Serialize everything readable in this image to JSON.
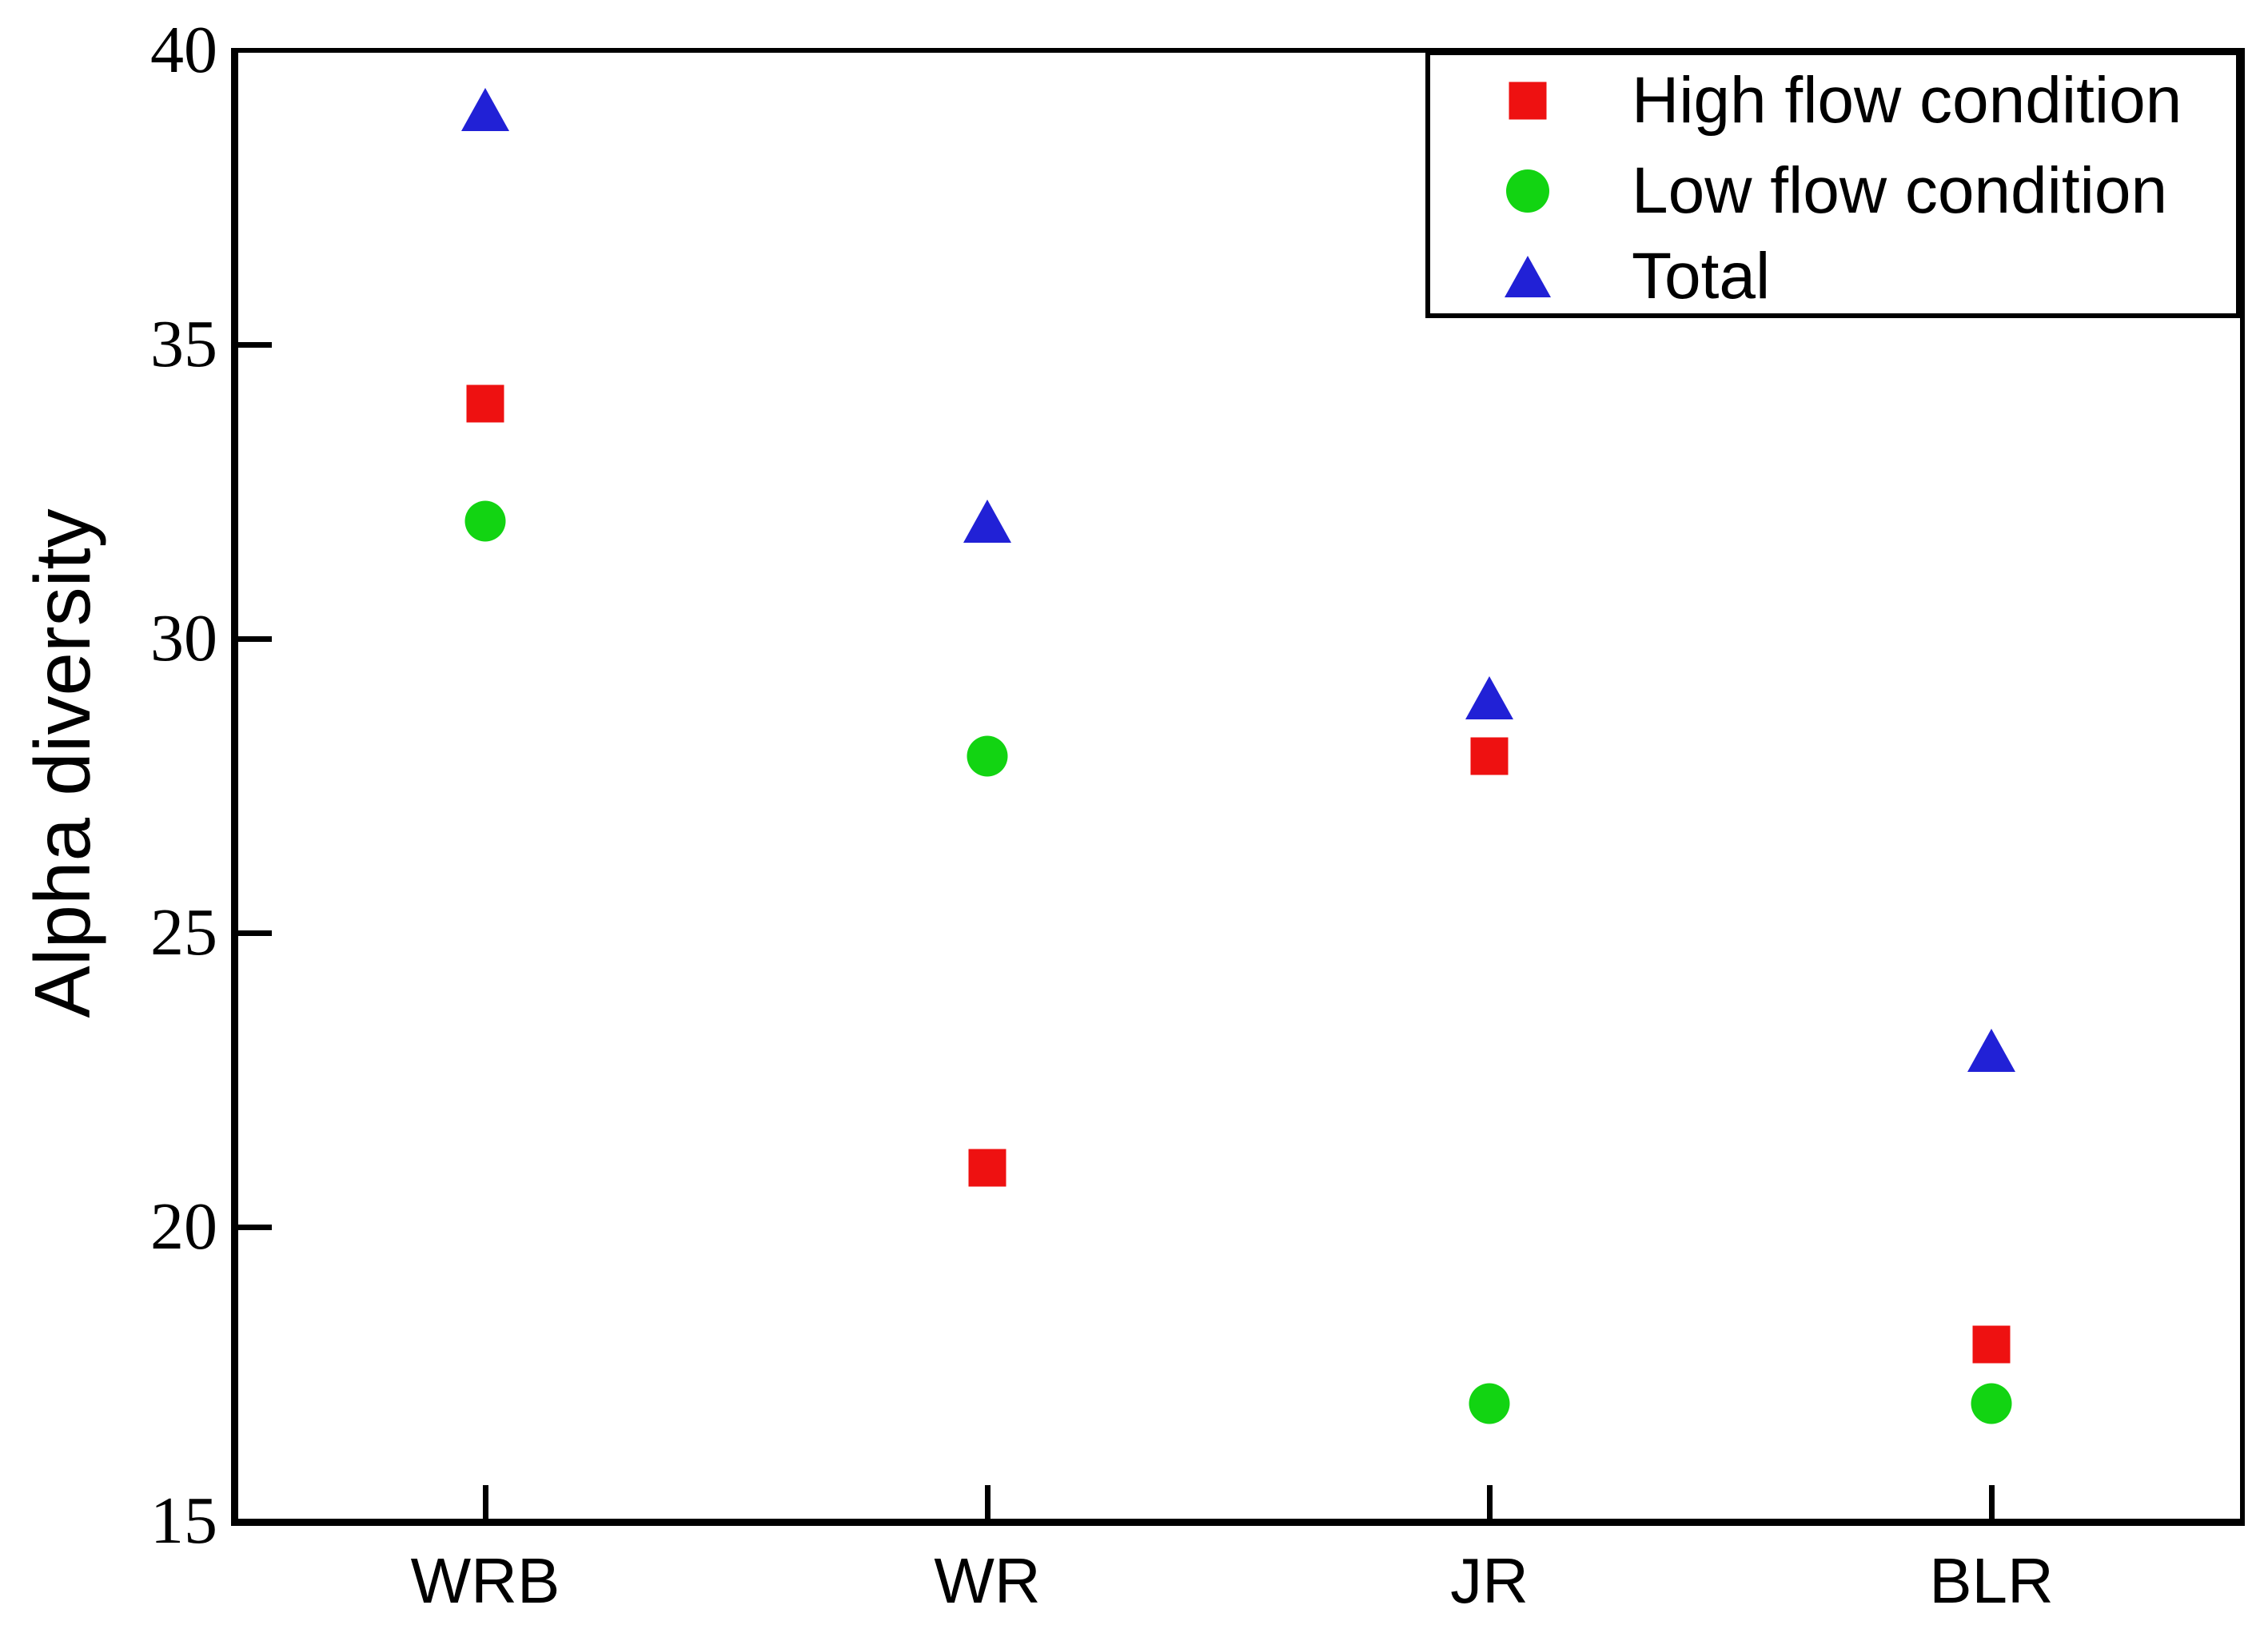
{
  "chart_data": {
    "type": "scatter",
    "title": "",
    "ylabel": "Alpha diversity",
    "xlabel": "",
    "categories": [
      "WRB",
      "WR",
      "JR",
      "BLR"
    ],
    "series": [
      {
        "name": "High flow condition",
        "marker": "square",
        "color": "#ee1111",
        "values": [
          34,
          21,
          28,
          18
        ]
      },
      {
        "name": "Low flow condition",
        "marker": "circle",
        "color": "#12d412",
        "values": [
          32,
          28,
          17,
          17
        ]
      },
      {
        "name": "Total",
        "marker": "triangle",
        "color": "#2121d6",
        "values": [
          39,
          32,
          29,
          23
        ]
      }
    ],
    "ylim": [
      15,
      40
    ],
    "yticks": [
      15,
      20,
      25,
      30,
      35,
      40
    ],
    "grid": false,
    "legend_position": "top-right"
  },
  "colors": {
    "axis": "#000000",
    "text": "#000000",
    "background": "#ffffff"
  }
}
